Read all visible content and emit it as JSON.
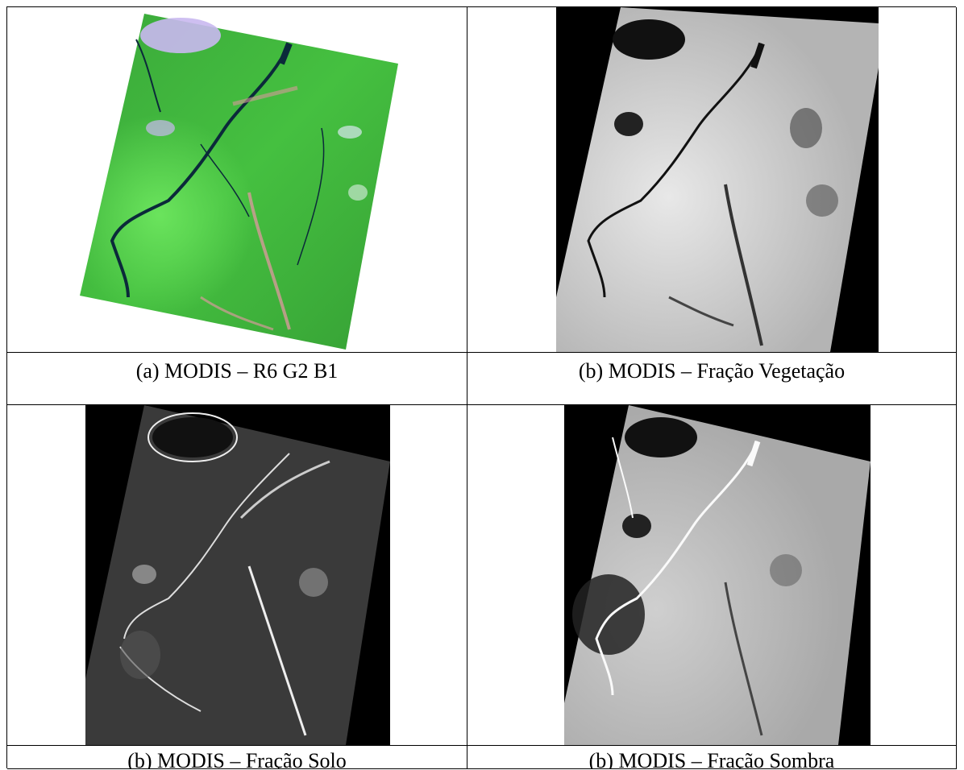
{
  "figure": {
    "panels": [
      {
        "id": "rgb",
        "caption": "(a) MODIS – R6 G2 B1"
      },
      {
        "id": "vegetation",
        "caption": "(b) MODIS – Fração Vegetação"
      },
      {
        "id": "soil",
        "caption": "(b) MODIS – Fração Solo"
      },
      {
        "id": "shadow",
        "caption": "(b) MODIS – Fração Sombra"
      }
    ]
  },
  "colors": {
    "vegetation_green": "#3fbf3a",
    "river": "#0b2a3a",
    "clouds": "#b9a8e8",
    "background_black": "#000000"
  }
}
